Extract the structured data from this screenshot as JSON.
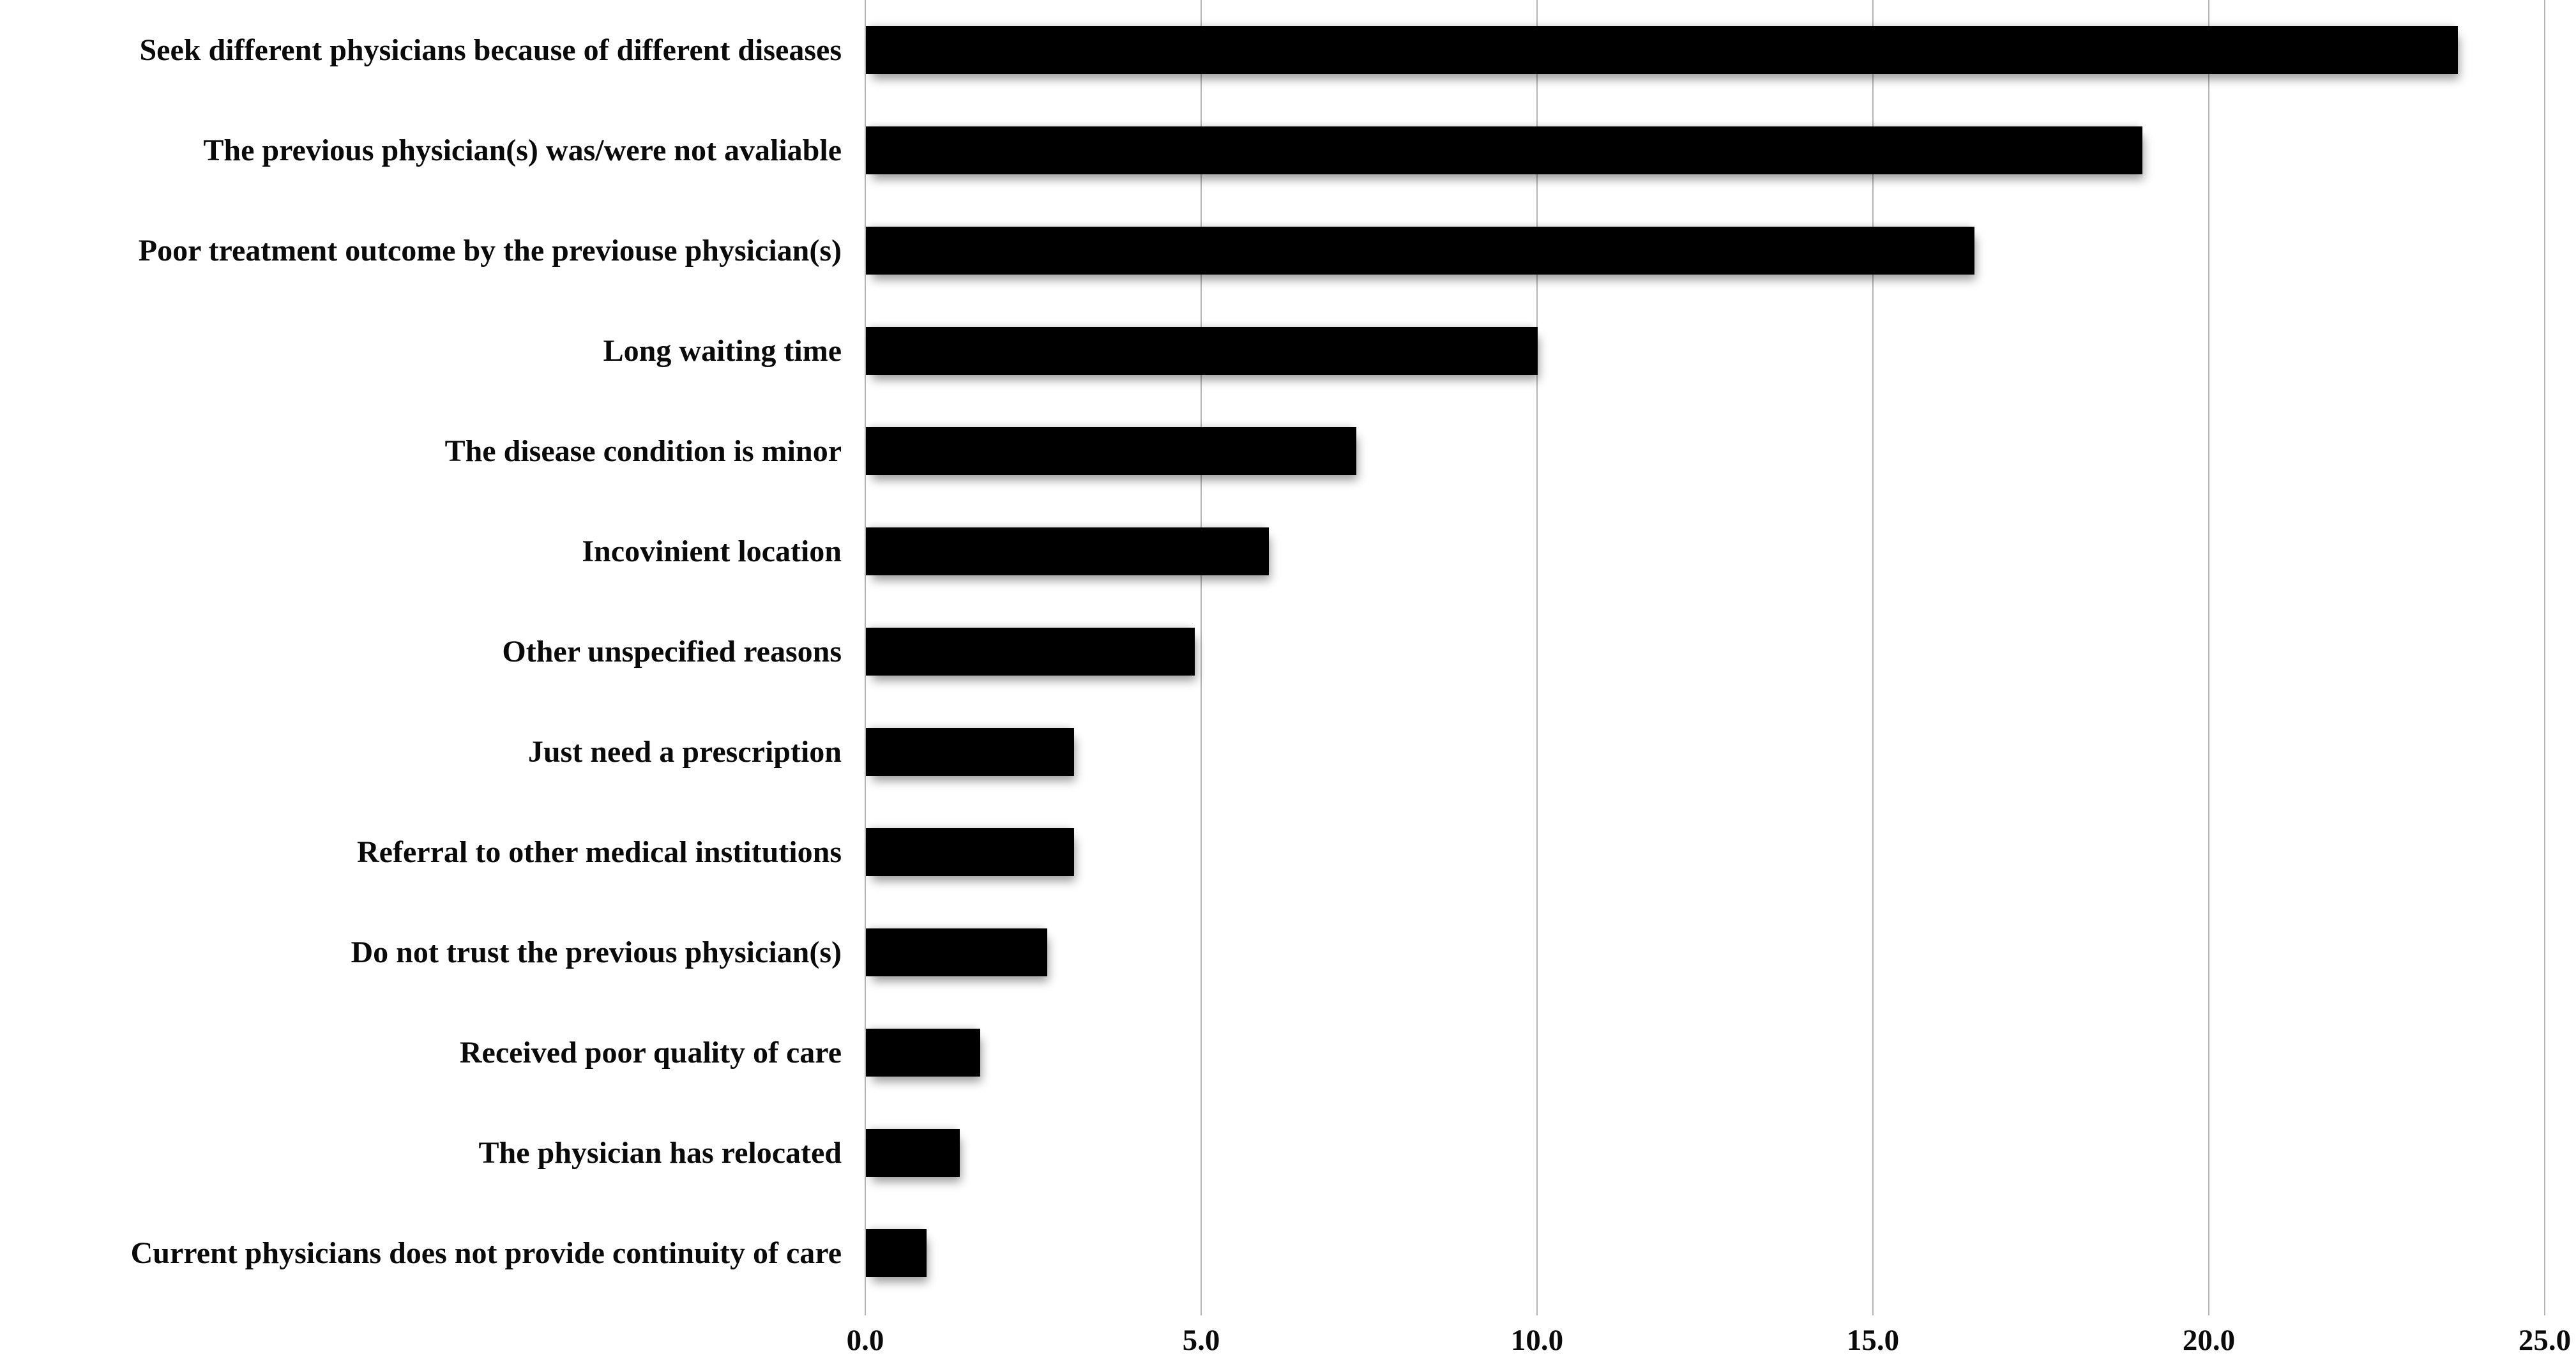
{
  "figure": {
    "description_label": "Horizontal bar chart of reasons, black bars on white background with light gray vertical gridlines"
  },
  "chart_data": {
    "type": "bar",
    "orientation": "horizontal",
    "title": "",
    "xlabel": "",
    "ylabel": "",
    "categories": [
      "Seek different physicians because of different diseases",
      "The previous physician(s) was/were not avaliable",
      "Poor treatment outcome by the previouse physician(s)",
      "Long waiting time",
      "The disease condition is minor",
      "Incovinient location",
      "Other unspecified reasons",
      "Just need a prescription",
      "Referral to other medical institutions",
      "Do not trust the previous physician(s)",
      "Received poor quality of care",
      "The physician has relocated",
      "Current physicians does not provide continuity of care"
    ],
    "values": [
      23.7,
      19.0,
      16.5,
      10.0,
      7.3,
      6.0,
      4.9,
      3.1,
      3.1,
      2.7,
      1.7,
      1.4,
      0.9
    ],
    "x_ticks": [
      "0.0",
      "5.0",
      "10.0",
      "15.0",
      "20.0",
      "25.0"
    ],
    "xlim": [
      0,
      25
    ],
    "grid": "vertical",
    "legend": null,
    "colors": {
      "bar": "#000000",
      "gridline": "#b4b4b4",
      "background": "#ffffff",
      "text": "#0a0a0a"
    }
  }
}
